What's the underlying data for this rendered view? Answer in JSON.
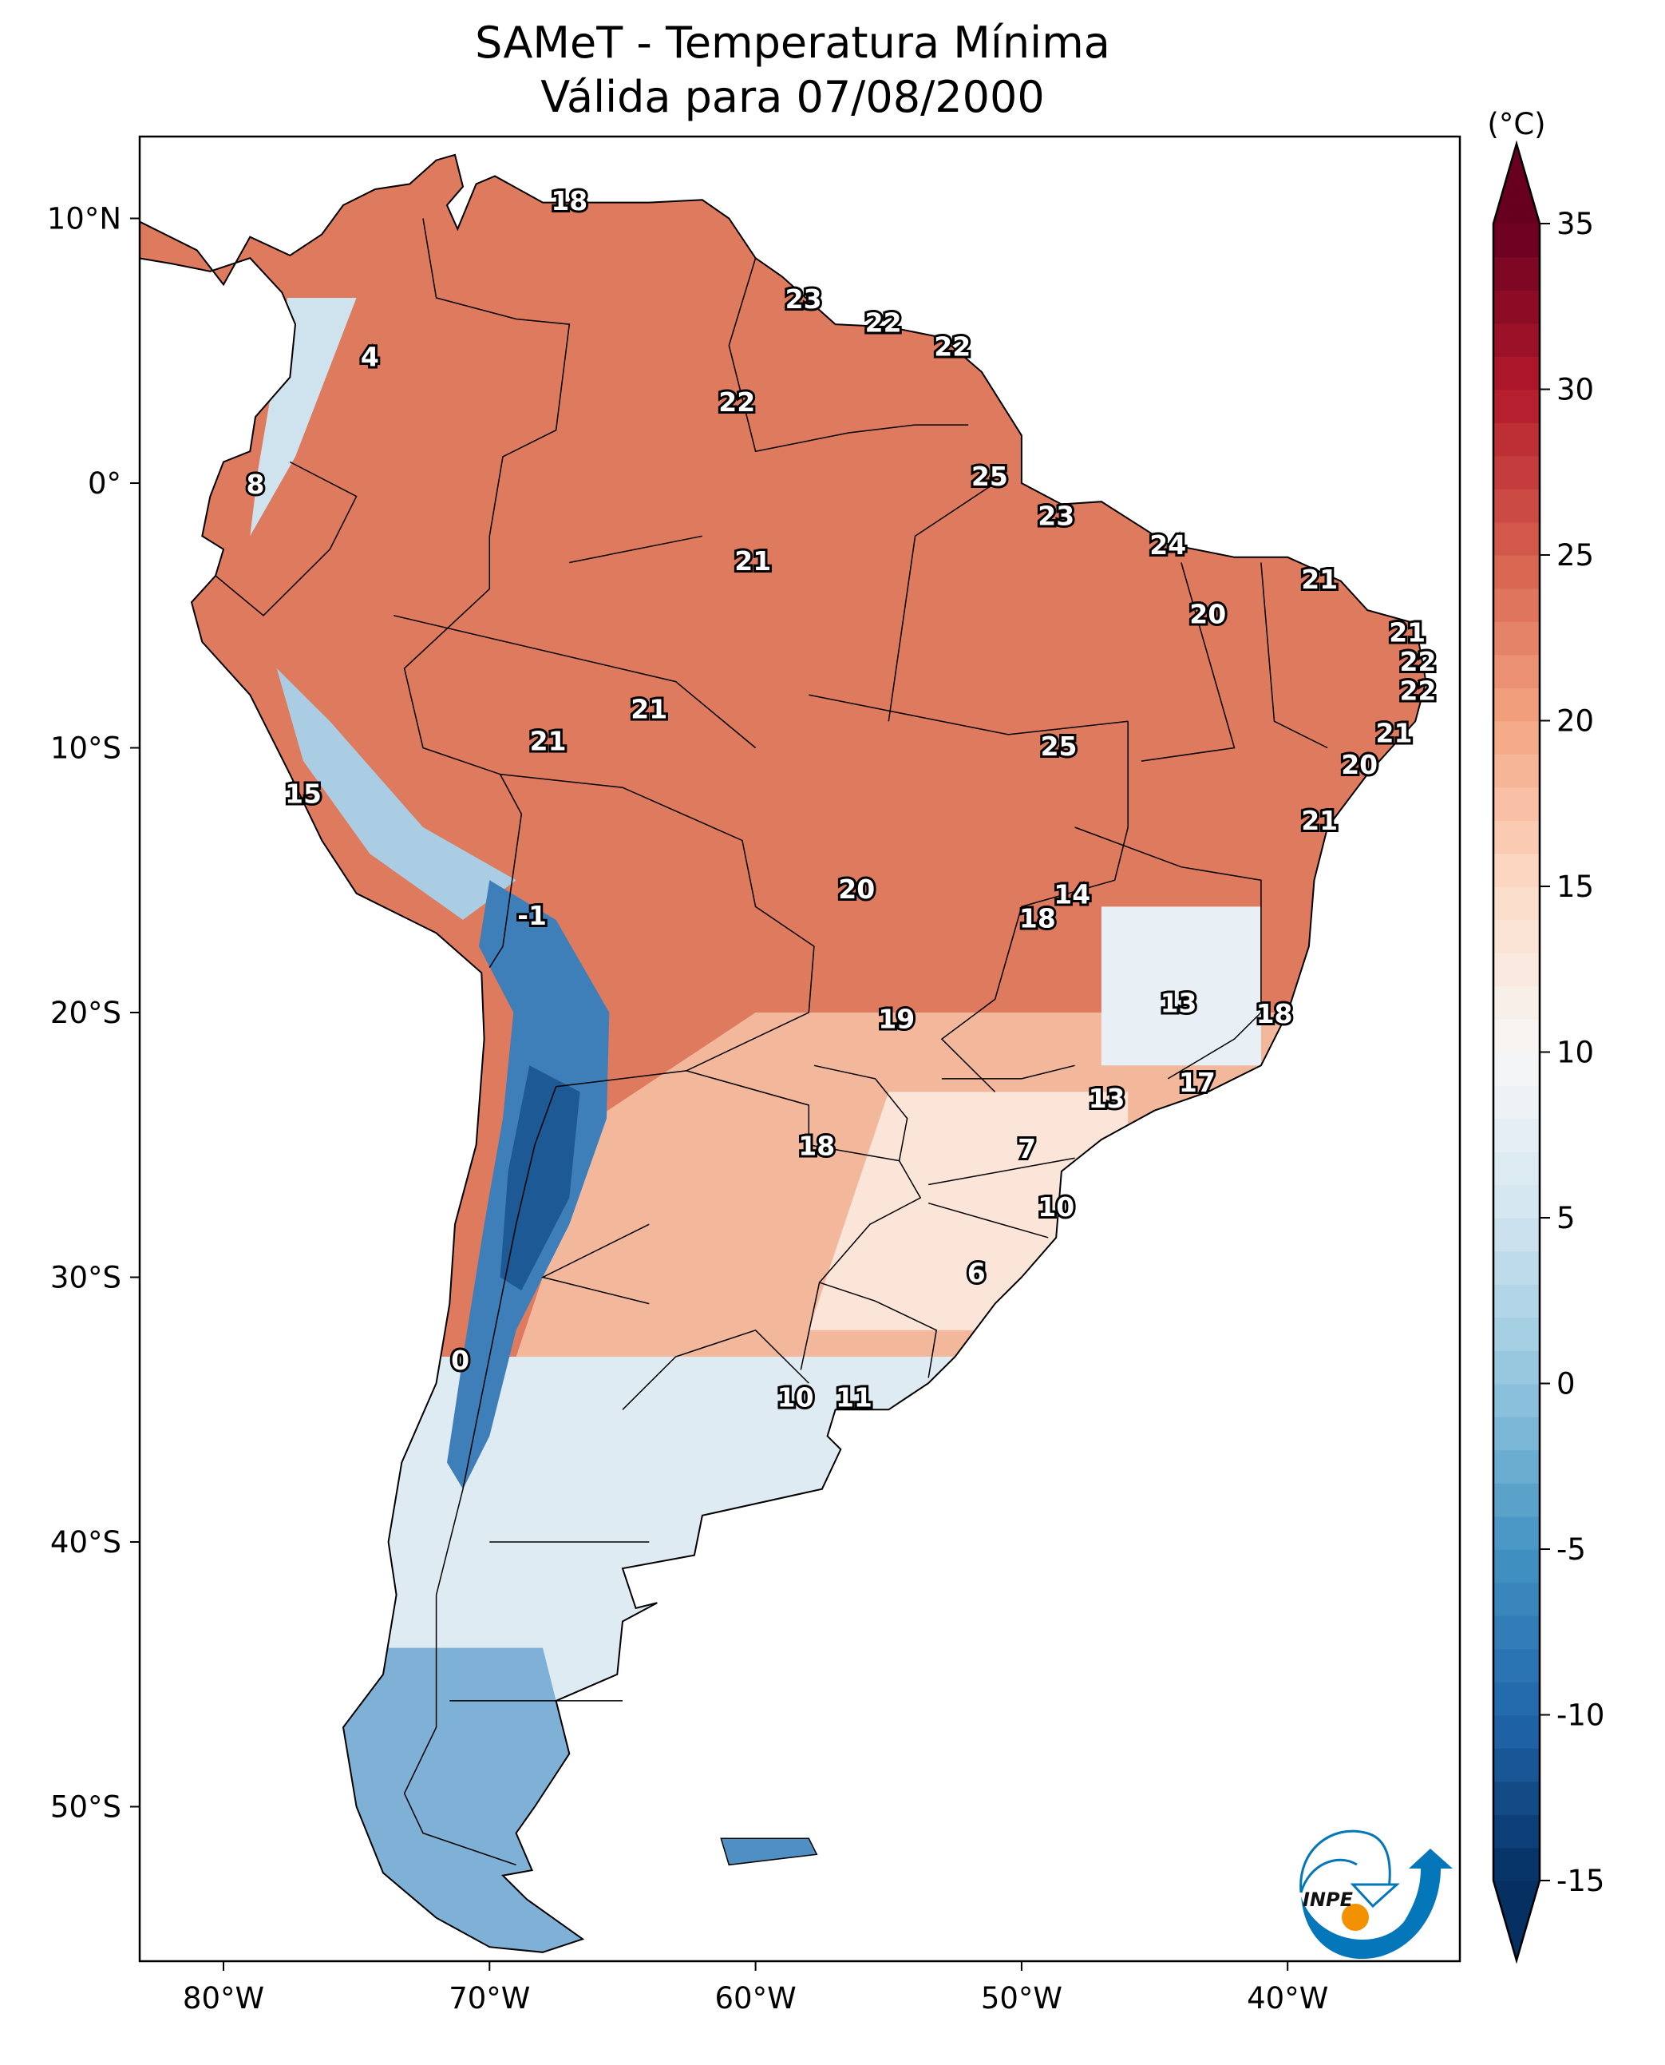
{
  "title": "SAMeT - Temperatura Mínima",
  "subtitle": "Válida para 07/08/2000",
  "colorbar": {
    "unit_label": "(°C)",
    "min": -15,
    "max": 35,
    "extend": "both",
    "colormap": "RdBu_r",
    "ticks": [
      "-15",
      "-10",
      "-5",
      "0",
      "5",
      "10",
      "15",
      "20",
      "25",
      "30",
      "35"
    ],
    "colors": [
      "#053061",
      "#2166ac",
      "#4393c3",
      "#92c5de",
      "#d1e5f0",
      "#f7f7f7",
      "#fddbc7",
      "#f4a582",
      "#d6604d",
      "#b2182b",
      "#67001f"
    ]
  },
  "axes": {
    "lon_ticks": [
      {
        "value": -80,
        "label": "80°W"
      },
      {
        "value": -70,
        "label": "70°W"
      },
      {
        "value": -60,
        "label": "60°W"
      },
      {
        "value": -50,
        "label": "50°W"
      },
      {
        "value": -40,
        "label": "40°W"
      }
    ],
    "lat_ticks": [
      {
        "value": 10,
        "label": "10°N"
      },
      {
        "value": 0,
        "label": "0°"
      },
      {
        "value": -10,
        "label": "10°S"
      },
      {
        "value": -20,
        "label": "20°S"
      },
      {
        "value": -30,
        "label": "30°S"
      },
      {
        "value": -40,
        "label": "40°S"
      },
      {
        "value": -50,
        "label": "50°S"
      }
    ],
    "lon_range": [
      -83.2,
      -33.5
    ],
    "lat_range": [
      -55.8,
      13.1
    ]
  },
  "station_labels": [
    {
      "value": "18",
      "lon": -67.0,
      "lat": 10.6
    },
    {
      "value": "23",
      "lon": -58.2,
      "lat": 6.9
    },
    {
      "value": "22",
      "lon": -55.2,
      "lat": 6.0
    },
    {
      "value": "22",
      "lon": -52.6,
      "lat": 5.1
    },
    {
      "value": "4",
      "lon": -74.5,
      "lat": 4.7
    },
    {
      "value": "22",
      "lon": -60.7,
      "lat": 3.0
    },
    {
      "value": "8",
      "lon": -78.8,
      "lat": -0.1
    },
    {
      "value": "25",
      "lon": -51.2,
      "lat": 0.2
    },
    {
      "value": "23",
      "lon": -48.7,
      "lat": -1.3
    },
    {
      "value": "24",
      "lon": -44.5,
      "lat": -2.4
    },
    {
      "value": "21",
      "lon": -60.1,
      "lat": -3.0
    },
    {
      "value": "21",
      "lon": -38.8,
      "lat": -3.7
    },
    {
      "value": "20",
      "lon": -43.0,
      "lat": -5.0
    },
    {
      "value": "21",
      "lon": -35.5,
      "lat": -5.7
    },
    {
      "value": "22",
      "lon": -35.1,
      "lat": -6.8
    },
    {
      "value": "22",
      "lon": -35.1,
      "lat": -7.9
    },
    {
      "value": "21",
      "lon": -64.0,
      "lat": -8.6
    },
    {
      "value": "21",
      "lon": -36.0,
      "lat": -9.5
    },
    {
      "value": "21",
      "lon": -67.8,
      "lat": -9.8
    },
    {
      "value": "25",
      "lon": -48.6,
      "lat": -10.0
    },
    {
      "value": "20",
      "lon": -37.3,
      "lat": -10.7
    },
    {
      "value": "15",
      "lon": -77.0,
      "lat": -11.8
    },
    {
      "value": "21",
      "lon": -38.8,
      "lat": -12.8
    },
    {
      "value": "20",
      "lon": -56.2,
      "lat": -15.4
    },
    {
      "value": "14",
      "lon": -48.1,
      "lat": -15.6
    },
    {
      "value": "-1",
      "lon": -68.4,
      "lat": -16.4
    },
    {
      "value": "18",
      "lon": -49.4,
      "lat": -16.5
    },
    {
      "value": "13",
      "lon": -44.1,
      "lat": -19.7
    },
    {
      "value": "19",
      "lon": -54.7,
      "lat": -20.3
    },
    {
      "value": "18",
      "lon": -40.5,
      "lat": -20.1
    },
    {
      "value": "17",
      "lon": -43.4,
      "lat": -22.7
    },
    {
      "value": "13",
      "lon": -46.8,
      "lat": -23.3
    },
    {
      "value": "18",
      "lon": -57.7,
      "lat": -25.1
    },
    {
      "value": "7",
      "lon": -49.8,
      "lat": -25.2
    },
    {
      "value": "10",
      "lon": -48.7,
      "lat": -27.4
    },
    {
      "value": "6",
      "lon": -51.7,
      "lat": -29.9
    },
    {
      "value": "0",
      "lon": -71.1,
      "lat": -33.2
    },
    {
      "value": "10",
      "lon": -58.5,
      "lat": -34.6
    },
    {
      "value": "11",
      "lon": -56.3,
      "lat": -34.6
    }
  ],
  "logo": {
    "text": "INPE",
    "colors": {
      "blue": "#0377b9",
      "orange": "#f39200"
    }
  }
}
